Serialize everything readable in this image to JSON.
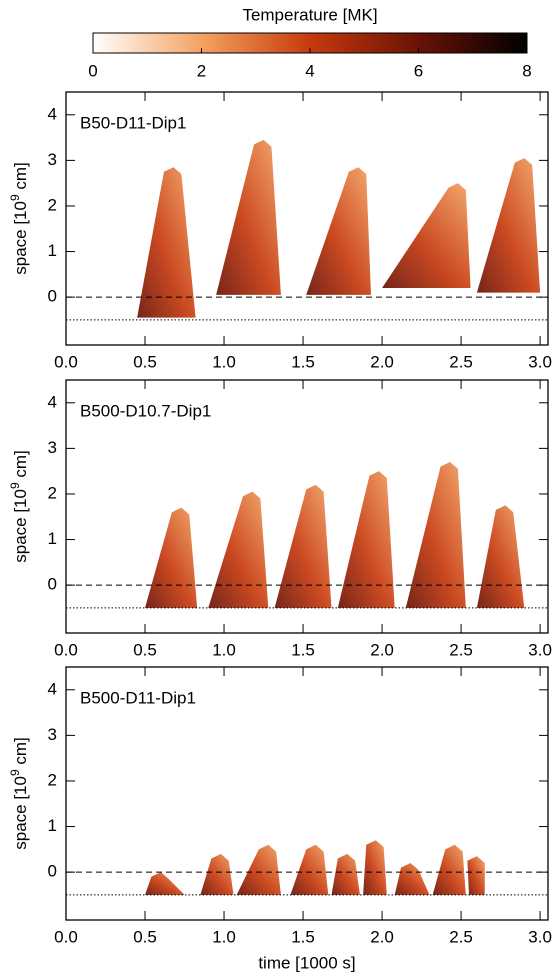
{
  "colorbar": {
    "title": "Temperature [MK]",
    "lim": [
      0,
      8
    ],
    "ticks": [
      0,
      2,
      4,
      6,
      8
    ],
    "colors": [
      "#ffffff",
      "#f4a262",
      "#c63a0e",
      "#6a1206",
      "#000000"
    ]
  },
  "chart_data": [
    {
      "type": "heatmap",
      "title": "B50-D11-Dip1",
      "ylabel": {
        "prefix": "space [10",
        "exponent": "9",
        "suffix": " cm]"
      },
      "xlim": [
        0,
        3.05
      ],
      "ylim": [
        -1.05,
        4.5
      ],
      "xticks": [
        {
          "value": 0,
          "label": "0.0"
        },
        0.5,
        {
          "value": 1,
          "label": "1.0"
        },
        1.5,
        {
          "value": 2,
          "label": "2.0"
        },
        2.5,
        {
          "value": 3,
          "label": "3.0"
        }
      ],
      "yticks": [
        0,
        1,
        2,
        3,
        4
      ],
      "reference_lines": [
        {
          "value": 0,
          "style": "dashed"
        },
        {
          "value": -0.5,
          "style": "dotted"
        }
      ],
      "events": [
        {
          "start": 0.45,
          "peak": 0.7,
          "end": 0.82,
          "height": 2.85,
          "base": -0.45
        },
        {
          "start": 0.95,
          "peak": 1.27,
          "end": 1.36,
          "height": 3.45,
          "base": 0.05
        },
        {
          "start": 1.52,
          "peak": 1.87,
          "end": 1.93,
          "height": 2.85,
          "base": 0.05
        },
        {
          "start": 2.0,
          "peak": 2.5,
          "end": 2.56,
          "height": 2.5,
          "base": 0.2
        },
        {
          "start": 2.6,
          "peak": 2.92,
          "end": 3.0,
          "height": 3.05,
          "base": 0.1
        }
      ]
    },
    {
      "type": "heatmap",
      "title": "B500-D10.7-Dip1",
      "ylabel": {
        "prefix": "space [10",
        "exponent": "9",
        "suffix": " cm]"
      },
      "xlim": [
        0,
        3.05
      ],
      "ylim": [
        -1.05,
        4.5
      ],
      "xticks": [
        {
          "value": 0,
          "label": "0.0"
        },
        0.5,
        {
          "value": 1,
          "label": "1.0"
        },
        1.5,
        {
          "value": 2,
          "label": "2.0"
        },
        2.5,
        {
          "value": 3,
          "label": "3.0"
        }
      ],
      "yticks": [
        0,
        1,
        2,
        3,
        4
      ],
      "reference_lines": [
        {
          "value": 0,
          "style": "dashed"
        },
        {
          "value": -0.5,
          "style": "dotted"
        }
      ],
      "events": [
        {
          "start": 0.5,
          "peak": 0.75,
          "end": 0.83,
          "height": 1.7,
          "base": -0.5
        },
        {
          "start": 0.9,
          "peak": 1.2,
          "end": 1.28,
          "height": 2.05,
          "base": -0.5
        },
        {
          "start": 1.32,
          "peak": 1.6,
          "end": 1.68,
          "height": 2.2,
          "base": -0.5
        },
        {
          "start": 1.72,
          "peak": 2.0,
          "end": 2.08,
          "height": 2.5,
          "base": -0.5
        },
        {
          "start": 2.15,
          "peak": 2.45,
          "end": 2.53,
          "height": 2.7,
          "base": -0.5
        },
        {
          "start": 2.6,
          "peak": 2.8,
          "end": 2.9,
          "height": 1.75,
          "base": -0.5
        }
      ]
    },
    {
      "type": "heatmap",
      "title": "B500-D11-Dip1",
      "ylabel": {
        "prefix": "space [10",
        "exponent": "9",
        "suffix": " cm]"
      },
      "xlabel": "time [1000 s]",
      "xlim": [
        0,
        3.05
      ],
      "ylim": [
        -1.05,
        4.5
      ],
      "xticks": [
        {
          "value": 0,
          "label": "0.0"
        },
        0.5,
        {
          "value": 1,
          "label": "1.0"
        },
        1.5,
        {
          "value": 2,
          "label": "2.0"
        },
        2.5,
        {
          "value": 3,
          "label": "3.0"
        }
      ],
      "yticks": [
        0,
        1,
        2,
        3,
        4
      ],
      "reference_lines": [
        {
          "value": 0,
          "style": "dashed"
        },
        {
          "value": -0.5,
          "style": "dotted"
        }
      ],
      "events": [
        {
          "start": 0.5,
          "peak": 0.62,
          "end": 0.75,
          "height": 0.0,
          "base": -0.5
        },
        {
          "start": 0.85,
          "peak": 1.0,
          "end": 1.06,
          "height": 0.4,
          "base": -0.5
        },
        {
          "start": 1.08,
          "peak": 1.3,
          "end": 1.36,
          "height": 0.6,
          "base": -0.5
        },
        {
          "start": 1.42,
          "peak": 1.6,
          "end": 1.66,
          "height": 0.6,
          "base": -0.5
        },
        {
          "start": 1.68,
          "peak": 1.8,
          "end": 1.86,
          "height": 0.4,
          "base": -0.5
        },
        {
          "start": 1.88,
          "peak": 1.98,
          "end": 2.03,
          "height": 0.7,
          "base": -0.5
        },
        {
          "start": 2.08,
          "peak": 2.2,
          "end": 2.3,
          "height": 0.2,
          "base": -0.5
        },
        {
          "start": 2.32,
          "peak": 2.48,
          "end": 2.53,
          "height": 0.6,
          "base": -0.5
        },
        {
          "start": 2.55,
          "peak": 2.62,
          "end": 2.65,
          "height": 0.35,
          "base": -0.5
        }
      ]
    }
  ]
}
